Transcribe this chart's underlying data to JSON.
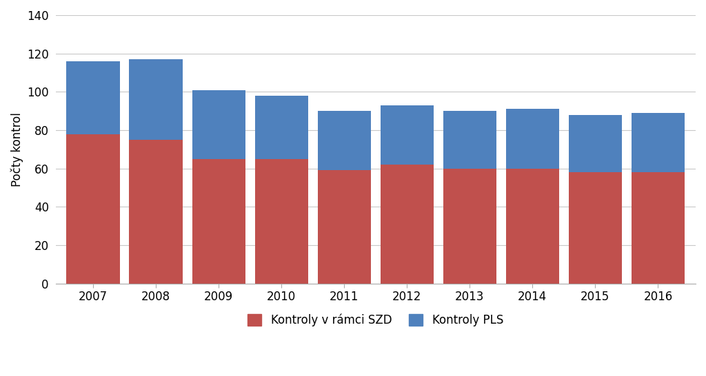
{
  "years": [
    2007,
    2008,
    2009,
    2010,
    2011,
    2012,
    2013,
    2014,
    2015,
    2016
  ],
  "szd_values": [
    78,
    75,
    65,
    65,
    59,
    62,
    60,
    60,
    58,
    58
  ],
  "pls_values": [
    38,
    42,
    36,
    33,
    31,
    31,
    30,
    31,
    30,
    31
  ],
  "color_szd": "#c0504d",
  "color_pls": "#4f81bd",
  "ylabel": "Počty kontrol",
  "ylim": [
    0,
    140
  ],
  "yticks": [
    0,
    20,
    40,
    60,
    80,
    100,
    120,
    140
  ],
  "legend_szd": "Kontroly v rámci SZD",
  "legend_pls": "Kontroly PLS",
  "background_color": "#ffffff",
  "bar_width": 0.85,
  "grid_color": "#c8c8c8",
  "ylabel_fontsize": 12,
  "tick_fontsize": 12,
  "legend_fontsize": 12
}
